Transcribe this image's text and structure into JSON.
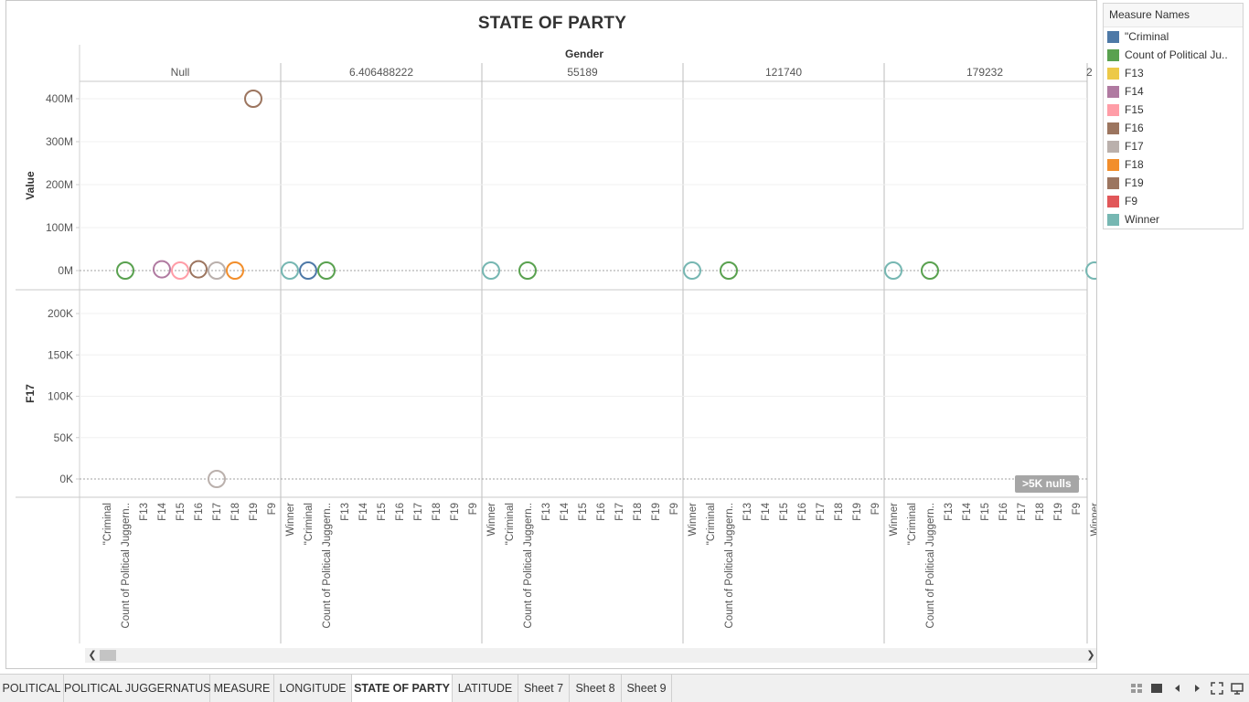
{
  "chart_data": {
    "type": "scatter",
    "title": "STATE OF PARTY",
    "column_header": "Gender",
    "panes": [
      "Null",
      "6.406488222",
      "55189",
      "121740",
      "179232"
    ],
    "categories": [
      "\"Criminal",
      "Count of Political Juggern..",
      "F13",
      "F14",
      "F15",
      "F16",
      "F17",
      "F18",
      "F19",
      "F9",
      "Winner"
    ],
    "rows": [
      {
        "ylabel": "Value",
        "ylim": [
          0,
          420000000
        ],
        "ticks": [
          0,
          100000000,
          200000000,
          300000000,
          400000000
        ],
        "tick_labels": [
          "0M",
          "100M",
          "200M",
          "300M",
          "400M"
        ],
        "points": [
          {
            "pane": "Null",
            "category": "Count of Political Juggern..",
            "measure": "Count of Political Ju..",
            "value": 0
          },
          {
            "pane": "Null",
            "category": "F14",
            "measure": "F14",
            "value": 3000000
          },
          {
            "pane": "Null",
            "category": "F15",
            "measure": "F15",
            "value": 0
          },
          {
            "pane": "Null",
            "category": "F16",
            "measure": "F16",
            "value": 3000000
          },
          {
            "pane": "Null",
            "category": "F17",
            "measure": "F17",
            "value": 0
          },
          {
            "pane": "Null",
            "category": "F18",
            "measure": "F18",
            "value": 0
          },
          {
            "pane": "Null",
            "category": "F19",
            "measure": "F19",
            "value": 400000000
          },
          {
            "pane": "Null",
            "category": "Winner",
            "measure": "Winner",
            "value": 0
          },
          {
            "pane": "6.406488222",
            "category": "\"Criminal",
            "measure": "\"Criminal",
            "value": 0
          },
          {
            "pane": "6.406488222",
            "category": "Count of Political Juggern..",
            "measure": "Count of Political Ju..",
            "value": 0
          },
          {
            "pane": "6.406488222",
            "category": "Winner",
            "measure": "Winner",
            "value": 0
          },
          {
            "pane": "55189",
            "category": "Count of Political Juggern..",
            "measure": "Count of Political Ju..",
            "value": 0
          },
          {
            "pane": "55189",
            "category": "Winner",
            "measure": "Winner",
            "value": 0
          },
          {
            "pane": "121740",
            "category": "Count of Political Juggern..",
            "measure": "Count of Political Ju..",
            "value": 0
          },
          {
            "pane": "121740",
            "category": "Winner",
            "measure": "Winner",
            "value": 0
          },
          {
            "pane": "179232",
            "category": "Count of Political Juggern..",
            "measure": "Count of Political Ju..",
            "value": 0
          },
          {
            "pane": "179232",
            "category": "Winner",
            "measure": "Winner",
            "value": 0
          }
        ]
      },
      {
        "ylabel": "F17",
        "ylim": [
          0,
          220000
        ],
        "ticks": [
          0,
          50000,
          100000,
          150000,
          200000
        ],
        "tick_labels": [
          "0K",
          "50K",
          "100K",
          "150K",
          "200K"
        ],
        "points": [
          {
            "pane": "Null",
            "category": "F17",
            "measure": "F17",
            "value": 0
          }
        ]
      }
    ],
    "legend_position": "right",
    "grid": true
  },
  "nulls_indicator": ">5K nulls",
  "legend": {
    "title": "Measure Names",
    "items": [
      {
        "label": "\"Criminal",
        "color": "#4e79a7"
      },
      {
        "label": "Count of Political Ju..",
        "color": "#59a14f"
      },
      {
        "label": "F13",
        "color": "#edc948"
      },
      {
        "label": "F14",
        "color": "#b07aa1"
      },
      {
        "label": "F15",
        "color": "#ff9da7"
      },
      {
        "label": "F16",
        "color": "#9c755f"
      },
      {
        "label": "F17",
        "color": "#bab0ac"
      },
      {
        "label": "F18",
        "color": "#f28e2b"
      },
      {
        "label": "F19",
        "color": "#9c755f"
      },
      {
        "label": "F9",
        "color": "#e15759"
      },
      {
        "label": "Winner",
        "color": "#76b7b2"
      }
    ]
  },
  "scroll": {
    "left_icon": "chevron-left-icon",
    "right_icon": "chevron-right-icon"
  },
  "tabs": [
    {
      "label": "POLITICAL",
      "active": false
    },
    {
      "label": "POLITICAL JUGGERNATUS",
      "active": false
    },
    {
      "label": "MEASURE",
      "active": false
    },
    {
      "label": "LONGITUDE",
      "active": false
    },
    {
      "label": "STATE OF PARTY",
      "active": true
    },
    {
      "label": "LATITUDE",
      "active": false
    },
    {
      "label": "Sheet 7",
      "active": false
    },
    {
      "label": "Sheet 8",
      "active": false
    },
    {
      "label": "Sheet 9",
      "active": false
    }
  ],
  "tab_controls": [
    "show-filmstrip-icon",
    "show-tabs-icon",
    "previous-sheet-icon",
    "next-sheet-icon",
    "full-screen-icon",
    "presentation-mode-icon"
  ]
}
